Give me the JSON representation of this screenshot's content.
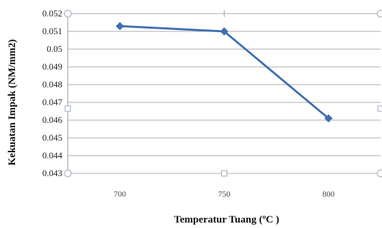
{
  "chart_data": {
    "type": "line",
    "categories": [
      "700",
      "750",
      "800"
    ],
    "series": [
      {
        "values": [
          0.0513,
          0.051,
          0.0461
        ]
      }
    ],
    "xlabel": "Temperatur Tuang (ºC )",
    "ylabel": "Kekuatan Impak (NM/mm2)",
    "ylim": [
      0.043,
      0.052
    ],
    "yticks": [
      "0.043",
      "0.044",
      "0.045",
      "0.046",
      "0.047",
      "0.048",
      "0.049",
      "0.05",
      "0.051",
      "0.052"
    ],
    "grid": "horizontal",
    "line_color": "#3f6fb0",
    "marker": "diamond"
  }
}
